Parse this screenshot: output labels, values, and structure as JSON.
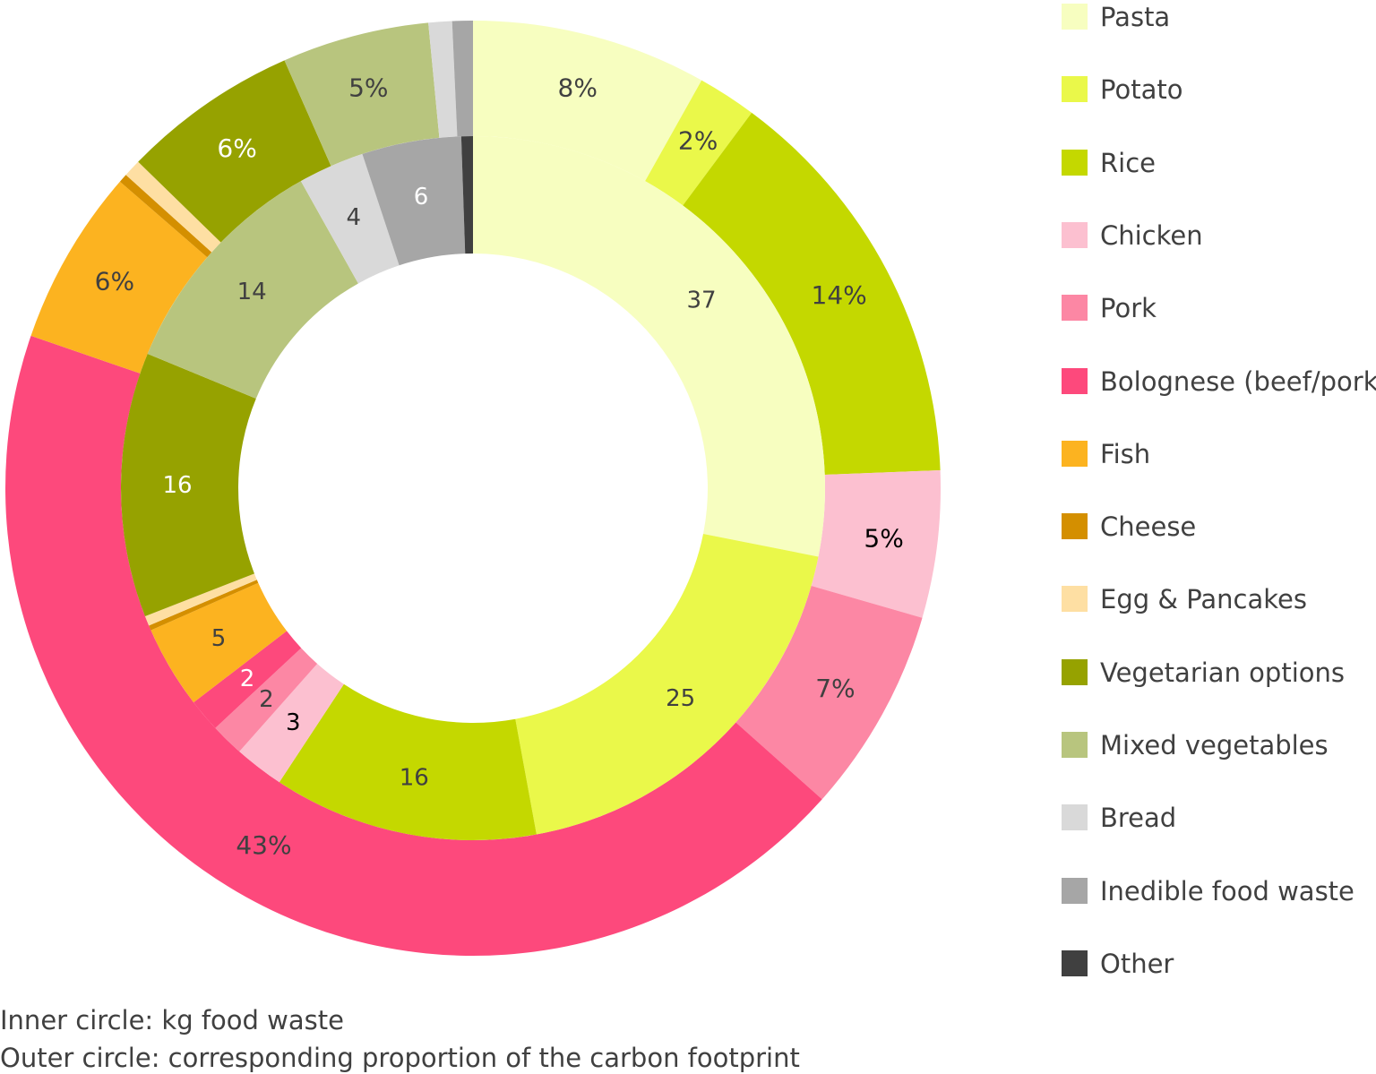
{
  "chart_data": {
    "type": "donut",
    "categories": [
      "Pasta",
      "Potato",
      "Rice",
      "Chicken",
      "Pork",
      "Bolognese (beef/pork)",
      "Fish",
      "Cheese",
      "Egg & Pancakes",
      "Vegetarian options",
      "Mixed vegetables",
      "Bread",
      "Inedible food waste",
      "Other"
    ],
    "colors": [
      "#F7FEC0",
      "#EAF84A",
      "#C4D800",
      "#FCC0D0",
      "#FC87A4",
      "#FD497C",
      "#FCB320",
      "#D48F00",
      "#FEDFA3",
      "#96A200",
      "#B8C57E",
      "#D9D9D9",
      "#A6A6A6",
      "#404040"
    ],
    "series": [
      {
        "name": "Inner circle: kg food waste",
        "values": [
          37,
          25,
          16,
          3,
          2,
          2,
          5,
          0.3,
          0.6,
          16,
          14,
          4,
          6,
          0.7
        ],
        "labels": [
          "37",
          "25",
          "16",
          "3",
          "2",
          "2",
          "5",
          "",
          "",
          "16",
          "14",
          "4",
          "6",
          ""
        ],
        "label_colors": [
          "#404040",
          "#404040",
          "#404040",
          "#000000",
          "#404040",
          "#ffffff",
          "#404040",
          "#404040",
          "#404040",
          "#ffffff",
          "#404040",
          "#404040",
          "#ffffff",
          "#ffffff"
        ]
      },
      {
        "name": "Outer circle: corresponding proportion of the carbon footprint",
        "values": [
          8,
          2,
          14,
          5,
          7,
          43,
          6,
          0.3,
          0.6,
          6,
          5,
          0.8,
          0.7,
          0
        ],
        "labels": [
          "8%",
          "2%",
          "14%",
          "5%",
          "7%",
          "43%",
          "6%",
          "",
          "",
          "6%",
          "5%",
          "",
          "",
          ""
        ],
        "label_colors": [
          "#404040",
          "#404040",
          "#404040",
          "#000000",
          "#404040",
          "#404040",
          "#404040",
          "#404040",
          "#404040",
          "#ffffff",
          "#404040",
          "#404040",
          "#404040",
          "#404040"
        ]
      }
    ]
  },
  "legend": {
    "items": [
      {
        "label": "Pasta",
        "color": "#F7FEC0"
      },
      {
        "label": "Potato",
        "color": "#EAF84A"
      },
      {
        "label": "Rice",
        "color": "#C4D800"
      },
      {
        "label": "Chicken",
        "color": "#FCC0D0"
      },
      {
        "label": "Pork",
        "color": "#FC87A4"
      },
      {
        "label": "Bolognese (beef/pork)",
        "color": "#FD497C"
      },
      {
        "label": "Fish",
        "color": "#FCB320"
      },
      {
        "label": "Cheese",
        "color": "#D48F00"
      },
      {
        "label": "Egg & Pancakes",
        "color": "#FEDFA3"
      },
      {
        "label": "Vegetarian options",
        "color": "#96A200"
      },
      {
        "label": "Mixed vegetables",
        "color": "#B8C57E"
      },
      {
        "label": "Bread",
        "color": "#D9D9D9"
      },
      {
        "label": "Inedible food waste",
        "color": "#A6A6A6"
      },
      {
        "label": "Other",
        "color": "#404040"
      }
    ]
  },
  "captions": {
    "inner": "Inner circle: kg food waste",
    "outer": "Outer circle: corresponding proportion of the carbon footprint"
  }
}
